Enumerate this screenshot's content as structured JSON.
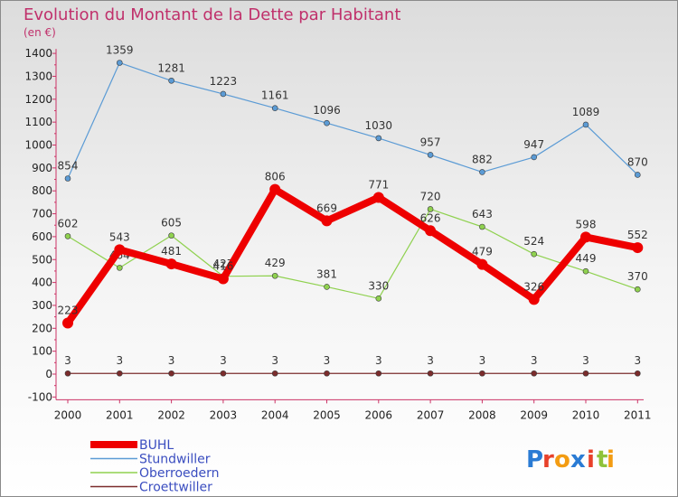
{
  "chart_data": {
    "type": "line",
    "title": "Evolution du Montant de la Dette par Habitant",
    "subtitle": "(en €)",
    "categories": [
      "2000",
      "2001",
      "2002",
      "2003",
      "2004",
      "2005",
      "2006",
      "2007",
      "2008",
      "2009",
      "2010",
      "2011"
    ],
    "ylim": [
      -100,
      1400
    ],
    "yticks": [
      -100,
      0,
      100,
      200,
      300,
      400,
      500,
      600,
      700,
      800,
      900,
      1000,
      1100,
      1200,
      1300,
      1400
    ],
    "grid": false,
    "legend_position": "bottom-left",
    "series": [
      {
        "name": "BUHL",
        "color": "#ee0000",
        "values": [
          223,
          543,
          481,
          416,
          806,
          669,
          771,
          626,
          479,
          326,
          598,
          552
        ]
      },
      {
        "name": "Stundwiller",
        "color": "#5b9bd5",
        "values": [
          854,
          1359,
          1281,
          1223,
          1161,
          1096,
          1030,
          957,
          882,
          947,
          1089,
          870
        ]
      },
      {
        "name": "Oberroedern",
        "color": "#8fd14f",
        "values": [
          602,
          464,
          605,
          427,
          429,
          381,
          330,
          720,
          643,
          524,
          449,
          370
        ]
      },
      {
        "name": "Croettwiller",
        "color": "#7b2c2c",
        "values": [
          3,
          3,
          3,
          3,
          3,
          3,
          3,
          3,
          3,
          3,
          3,
          3
        ]
      }
    ]
  },
  "logo": {
    "letters": [
      "P",
      "r",
      "o",
      "x",
      "i",
      "t",
      "i"
    ],
    "colors": [
      "#2a7bd4",
      "#e8412a",
      "#f39c12",
      "#2a7bd4",
      "#e8412a",
      "#8fc33a",
      "#f39c12"
    ]
  }
}
